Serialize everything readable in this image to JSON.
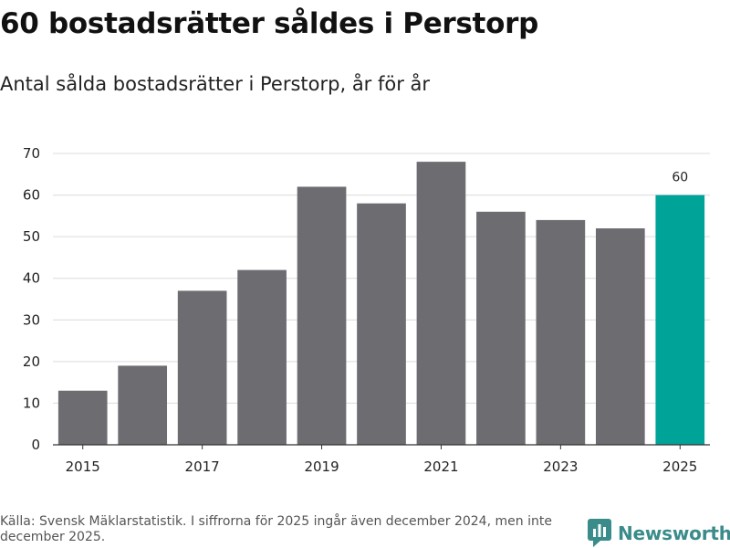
{
  "title": "60 bostadsrätter såldes i Perstorp",
  "subtitle": "Antal sålda bostadsrätter i Perstorp, år för år",
  "footer": "Källa: Svensk Mäklarstatistik. I siffrorna för 2025 ingår även december 2024, men inte december 2025.",
  "brand": "Newsworthy",
  "colors": {
    "bar": "#6d6c71",
    "highlight": "#00a398",
    "brand": "#3a8c8a"
  },
  "chart_data": {
    "type": "bar",
    "title": "Antal sålda bostadsrätter i Perstorp, år för år",
    "xlabel": "",
    "ylabel": "",
    "categories": [
      "2015",
      "2016",
      "2017",
      "2018",
      "2019",
      "2020",
      "2021",
      "2022",
      "2023",
      "2024",
      "2025"
    ],
    "values": [
      13,
      19,
      37,
      42,
      62,
      58,
      68,
      56,
      54,
      52,
      60
    ],
    "ylim": [
      0,
      70
    ],
    "yticks": [
      0,
      10,
      20,
      30,
      40,
      50,
      60,
      70
    ],
    "xtick_labels": [
      "2015",
      "2017",
      "2019",
      "2021",
      "2023",
      "2025"
    ],
    "highlight_category": "2025",
    "data_labels": [
      {
        "category": "2025",
        "text": "60"
      }
    ],
    "grid": true,
    "legend": "none"
  }
}
